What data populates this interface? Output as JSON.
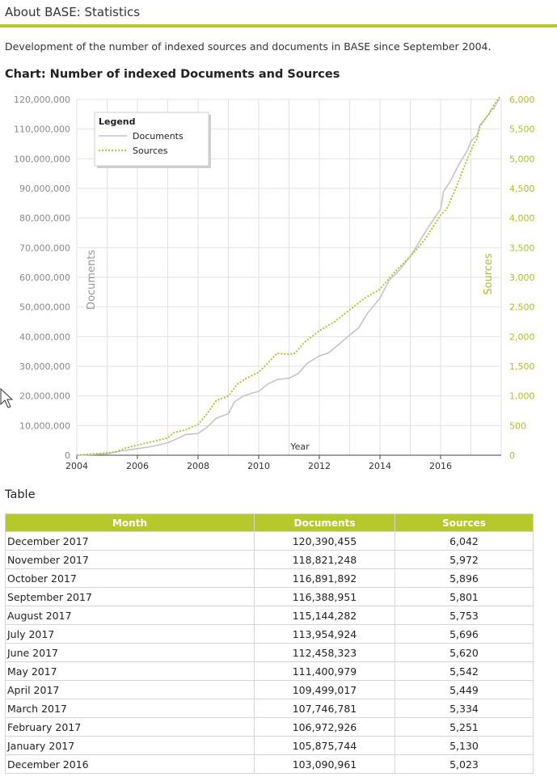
{
  "header": {
    "title": "About BASE: Statistics",
    "intro": "Development of the number of indexed sources and documents in BASE since September 2004."
  },
  "chart_heading": "Chart: Number of indexed Documents and Sources",
  "colors": {
    "accent": "#b5c92c",
    "documents_line": "#c4c4cc",
    "sources_line": "#a8c424",
    "grid": "#e2e2e2"
  },
  "chart_data": {
    "type": "line",
    "xlabel": "Year",
    "ylabel_left": "Documents",
    "ylabel_right": "Sources",
    "xlim": [
      2004,
      2018
    ],
    "ylim_left": [
      0,
      120000000
    ],
    "ylim_right": [
      0,
      6000
    ],
    "x_ticks": [
      "2004",
      "2006",
      "2008",
      "2010",
      "2012",
      "2014",
      "2016"
    ],
    "y_ticks_left": [
      "0",
      "10,000,000",
      "20,000,000",
      "30,000,000",
      "40,000,000",
      "50,000,000",
      "60,000,000",
      "70,000,000",
      "80,000,000",
      "90,000,000",
      "100,000,000",
      "110,000,000",
      "120,000,000"
    ],
    "y_ticks_right": [
      "0",
      "500",
      "1,000",
      "1,500",
      "2,000",
      "2,500",
      "3,000",
      "3,500",
      "4,000",
      "4,500",
      "5,000",
      "5,500",
      "6,000"
    ],
    "grid": true,
    "legend": {
      "title": "Legend",
      "position": "top-left"
    },
    "series": [
      {
        "name": "Documents",
        "axis": "left",
        "points": [
          [
            2004.0,
            0
          ],
          [
            2004.5,
            200000
          ],
          [
            2005.0,
            500000
          ],
          [
            2005.5,
            1500000
          ],
          [
            2006.0,
            2200000
          ],
          [
            2006.5,
            3000000
          ],
          [
            2007.0,
            4200000
          ],
          [
            2007.3,
            5500000
          ],
          [
            2007.6,
            7000000
          ],
          [
            2008.0,
            7300000
          ],
          [
            2008.3,
            9500000
          ],
          [
            2008.6,
            12500000
          ],
          [
            2009.0,
            14000000
          ],
          [
            2009.2,
            18000000
          ],
          [
            2009.5,
            20000000
          ],
          [
            2009.8,
            21000000
          ],
          [
            2010.0,
            21500000
          ],
          [
            2010.3,
            24000000
          ],
          [
            2010.6,
            25500000
          ],
          [
            2011.0,
            26000000
          ],
          [
            2011.3,
            27500000
          ],
          [
            2011.6,
            31000000
          ],
          [
            2012.0,
            33500000
          ],
          [
            2012.3,
            34500000
          ],
          [
            2012.6,
            37000000
          ],
          [
            2013.0,
            40500000
          ],
          [
            2013.3,
            43000000
          ],
          [
            2013.6,
            48000000
          ],
          [
            2014.0,
            53000000
          ],
          [
            2014.3,
            59000000
          ],
          [
            2014.6,
            62000000
          ],
          [
            2015.0,
            67000000
          ],
          [
            2015.3,
            72000000
          ],
          [
            2015.6,
            77000000
          ],
          [
            2016.0,
            83000000
          ],
          [
            2016.1,
            89000000
          ],
          [
            2016.3,
            92000000
          ],
          [
            2016.6,
            98000000
          ],
          [
            2016.9,
            103090961
          ],
          [
            2017.0,
            105875744
          ],
          [
            2017.1,
            106972926
          ],
          [
            2017.2,
            107746781
          ],
          [
            2017.25,
            109499017
          ],
          [
            2017.3,
            111400979
          ],
          [
            2017.4,
            112458323
          ],
          [
            2017.5,
            113954924
          ],
          [
            2017.6,
            115144282
          ],
          [
            2017.65,
            116388951
          ],
          [
            2017.75,
            116891892
          ],
          [
            2017.85,
            118821248
          ],
          [
            2017.95,
            120390455
          ]
        ]
      },
      {
        "name": "Sources",
        "axis": "right",
        "points": [
          [
            2004.0,
            0
          ],
          [
            2004.5,
            20
          ],
          [
            2005.0,
            40
          ],
          [
            2005.3,
            60
          ],
          [
            2005.6,
            120
          ],
          [
            2006.0,
            170
          ],
          [
            2006.5,
            230
          ],
          [
            2007.0,
            290
          ],
          [
            2007.2,
            380
          ],
          [
            2007.6,
            430
          ],
          [
            2008.0,
            520
          ],
          [
            2008.3,
            700
          ],
          [
            2008.6,
            920
          ],
          [
            2009.0,
            1000
          ],
          [
            2009.3,
            1200
          ],
          [
            2009.6,
            1300
          ],
          [
            2010.0,
            1400
          ],
          [
            2010.3,
            1550
          ],
          [
            2010.6,
            1720
          ],
          [
            2011.0,
            1700
          ],
          [
            2011.2,
            1720
          ],
          [
            2011.5,
            1900
          ],
          [
            2012.0,
            2100
          ],
          [
            2012.5,
            2250
          ],
          [
            2013.0,
            2450
          ],
          [
            2013.5,
            2650
          ],
          [
            2014.0,
            2800
          ],
          [
            2014.3,
            2980
          ],
          [
            2014.6,
            3150
          ],
          [
            2015.0,
            3350
          ],
          [
            2015.5,
            3650
          ],
          [
            2016.0,
            4050
          ],
          [
            2016.2,
            4150
          ],
          [
            2016.5,
            4500
          ],
          [
            2016.9,
            5023
          ],
          [
            2017.0,
            5130
          ],
          [
            2017.1,
            5251
          ],
          [
            2017.2,
            5334
          ],
          [
            2017.25,
            5449
          ],
          [
            2017.3,
            5542
          ],
          [
            2017.4,
            5620
          ],
          [
            2017.5,
            5696
          ],
          [
            2017.6,
            5753
          ],
          [
            2017.65,
            5801
          ],
          [
            2017.75,
            5896
          ],
          [
            2017.85,
            5972
          ],
          [
            2017.95,
            6042
          ]
        ]
      }
    ]
  },
  "table": {
    "heading": "Table",
    "columns": [
      "Month",
      "Documents",
      "Sources"
    ],
    "rows": [
      [
        "December 2017",
        "120,390,455",
        "6,042"
      ],
      [
        "November 2017",
        "118,821,248",
        "5,972"
      ],
      [
        "October 2017",
        "116,891,892",
        "5,896"
      ],
      [
        "September 2017",
        "116,388,951",
        "5,801"
      ],
      [
        "August 2017",
        "115,144,282",
        "5,753"
      ],
      [
        "July 2017",
        "113,954,924",
        "5,696"
      ],
      [
        "June 2017",
        "112,458,323",
        "5,620"
      ],
      [
        "May 2017",
        "111,400,979",
        "5,542"
      ],
      [
        "April 2017",
        "109,499,017",
        "5,449"
      ],
      [
        "March 2017",
        "107,746,781",
        "5,334"
      ],
      [
        "February 2017",
        "106,972,926",
        "5,251"
      ],
      [
        "January 2017",
        "105,875,744",
        "5,130"
      ],
      [
        "December 2016",
        "103,090,961",
        "5,023"
      ]
    ]
  }
}
